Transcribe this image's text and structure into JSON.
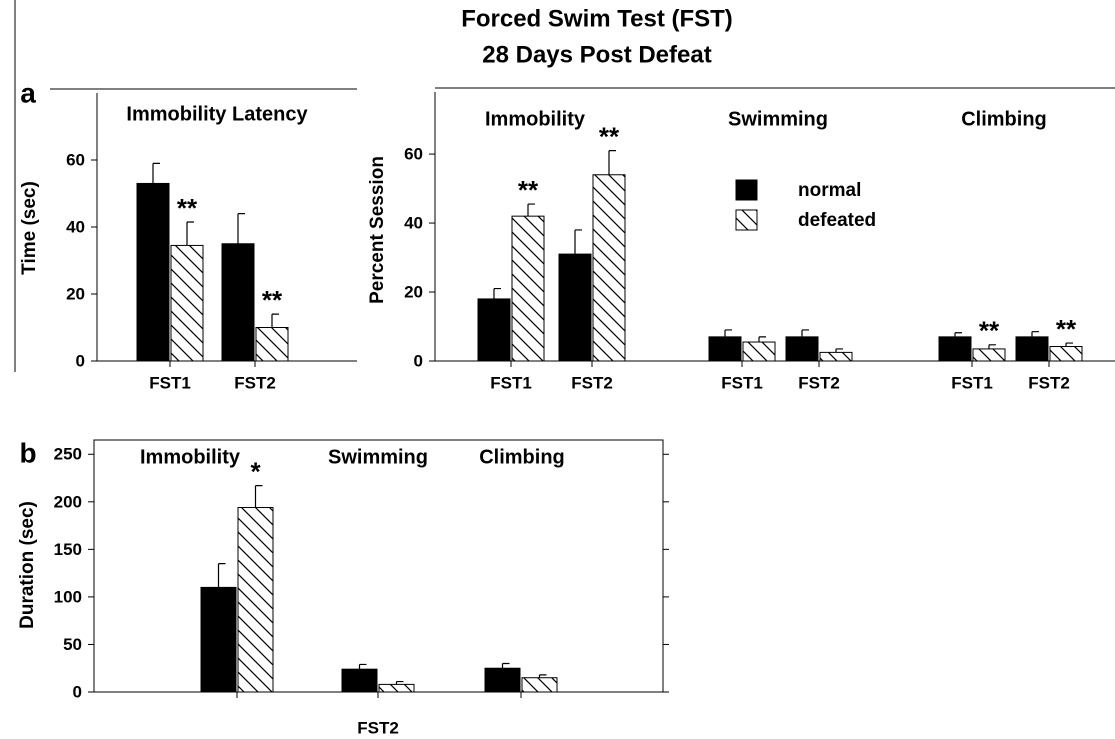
{
  "title": "Forced Swim Test (FST)",
  "subtitle": "28 Days Post Defeat",
  "chart_data": [
    {
      "type": "bar",
      "panel": "a",
      "title": "Immobility Latency",
      "ylabel": "Time (sec)",
      "categories": [
        "FST1",
        "FST2"
      ],
      "series": [
        {
          "name": "normal",
          "color": "#000000",
          "values": [
            53,
            35
          ],
          "error": [
            6,
            9
          ]
        },
        {
          "name": "defeated",
          "color": "#ffffff",
          "pattern": "hatch",
          "values": [
            34.5,
            10
          ],
          "error": [
            7,
            4
          ],
          "sig": [
            "**",
            "**"
          ]
        }
      ],
      "ylim": [
        0,
        80
      ],
      "yticks": [
        0,
        20,
        40,
        60
      ]
    },
    {
      "type": "bar",
      "ylabel": "Percent Session",
      "groups": [
        "Immobility",
        "Swimming",
        "Climbing"
      ],
      "categories": [
        "FST1",
        "FST2",
        "FST1",
        "FST2",
        "FST1",
        "FST2"
      ],
      "series": [
        {
          "name": "normal",
          "color": "#000000",
          "values": [
            18,
            31,
            7,
            7,
            7,
            7
          ],
          "error": [
            3,
            7,
            2,
            2,
            1.2,
            1.5
          ]
        },
        {
          "name": "defeated",
          "color": "#ffffff",
          "pattern": "hatch",
          "values": [
            42,
            54,
            5.5,
            2.5,
            3.5,
            4.2
          ],
          "error": [
            3.5,
            7,
            1.5,
            1,
            1.2,
            1
          ],
          "sig": [
            "**",
            "**",
            null,
            null,
            "**",
            "**"
          ]
        }
      ],
      "ylim": [
        0,
        78
      ],
      "yticks": [
        0,
        20,
        40,
        60
      ],
      "legend": true
    },
    {
      "type": "bar",
      "panel": "b",
      "ylabel": "Duration (sec)",
      "xlabel": "FST2",
      "categories": [
        "Immobility",
        "Swimming",
        "Climbing"
      ],
      "series": [
        {
          "name": "normal",
          "color": "#000000",
          "values": [
            110,
            24,
            25
          ],
          "error": [
            25,
            5,
            5
          ]
        },
        {
          "name": "defeated",
          "color": "#ffffff",
          "pattern": "hatch",
          "values": [
            194,
            8,
            15
          ],
          "error": [
            23,
            3,
            3
          ],
          "sig": [
            "*",
            null,
            null
          ]
        }
      ],
      "ylim": [
        0,
        265
      ],
      "yticks": [
        0,
        50,
        100,
        150,
        200,
        250
      ]
    }
  ]
}
